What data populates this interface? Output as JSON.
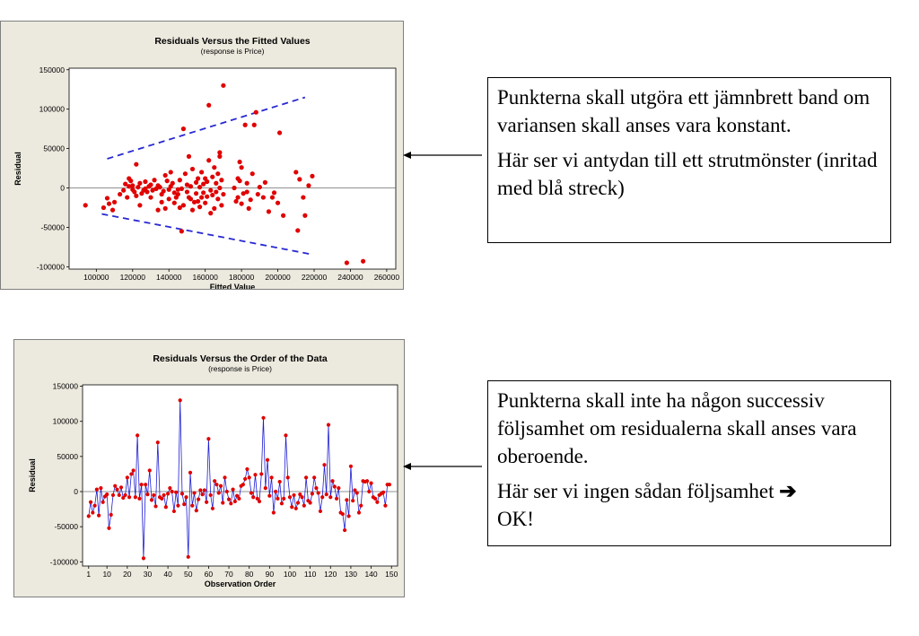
{
  "charts_meta": {
    "point_color": "#E00000",
    "line_color": "#1E1ED2",
    "dash_color": "#2828D2",
    "panel_bg": "#ECE9DE"
  },
  "chart_data": [
    {
      "type": "scatter",
      "title": "Residuals Versus the Fitted Values",
      "subtitle": "(response is Price)",
      "xlabel": "Fitted Value",
      "ylabel": "Residual",
      "xlim": [
        85000,
        265000
      ],
      "ylim": [
        -103000,
        152000
      ],
      "xticks": [
        100000,
        120000,
        140000,
        160000,
        180000,
        200000,
        220000,
        240000,
        260000
      ],
      "yticks": [
        -100000,
        -50000,
        0,
        50000,
        100000,
        150000
      ],
      "reference_line_y": 0,
      "trend_lines": [
        {
          "style": "dashed",
          "x": [
            106000,
            215000
          ],
          "y": [
            37000,
            115000
          ]
        },
        {
          "style": "dashed",
          "x": [
            103000,
            218000
          ],
          "y": [
            -33000,
            -84000
          ]
        }
      ],
      "points": [
        [
          94000,
          -22000
        ],
        [
          104000,
          -25000
        ],
        [
          106000,
          -13000
        ],
        [
          107000,
          -20000
        ],
        [
          109000,
          -28000
        ],
        [
          110000,
          -18000
        ],
        [
          113000,
          -8000
        ],
        [
          115000,
          -3000
        ],
        [
          116000,
          5000
        ],
        [
          117000,
          -12000
        ],
        [
          118000,
          2000
        ],
        [
          118000,
          12000
        ],
        [
          119000,
          9000
        ],
        [
          120000,
          -2000
        ],
        [
          120000,
          3000
        ],
        [
          121000,
          -5000
        ],
        [
          122000,
          -10000
        ],
        [
          122000,
          30000
        ],
        [
          123000,
          1000
        ],
        [
          124000,
          6000
        ],
        [
          124000,
          -22000
        ],
        [
          125000,
          -7000
        ],
        [
          126000,
          -3000
        ],
        [
          127000,
          8000
        ],
        [
          127000,
          -1000
        ],
        [
          128000,
          -5000
        ],
        [
          129000,
          2000
        ],
        [
          130000,
          -12000
        ],
        [
          130000,
          4000
        ],
        [
          131000,
          -3000
        ],
        [
          132000,
          10000
        ],
        [
          133000,
          -1000
        ],
        [
          134000,
          -28000
        ],
        [
          134000,
          3000
        ],
        [
          135000,
          1000
        ],
        [
          136000,
          -8000
        ],
        [
          136000,
          -18000
        ],
        [
          137000,
          -4000
        ],
        [
          138000,
          16000
        ],
        [
          138000,
          -26000
        ],
        [
          139000,
          9000
        ],
        [
          140000,
          -2000
        ],
        [
          140000,
          -14000
        ],
        [
          141000,
          2000
        ],
        [
          141000,
          20000
        ],
        [
          142000,
          6000
        ],
        [
          143000,
          -6000
        ],
        [
          143000,
          -19000
        ],
        [
          144000,
          -12000
        ],
        [
          145000,
          -2000
        ],
        [
          145000,
          -8000
        ],
        [
          146000,
          10000
        ],
        [
          146000,
          -25000
        ],
        [
          147000,
          -1000
        ],
        [
          147000,
          -55000
        ],
        [
          148000,
          75000
        ],
        [
          148000,
          -22000
        ],
        [
          149000,
          18000
        ],
        [
          150000,
          4000
        ],
        [
          150000,
          -5000
        ],
        [
          151000,
          40000
        ],
        [
          151000,
          -12000
        ],
        [
          152000,
          -14000
        ],
        [
          152000,
          2000
        ],
        [
          153000,
          24000
        ],
        [
          153000,
          -28000
        ],
        [
          154000,
          -18000
        ],
        [
          155000,
          -7000
        ],
        [
          155000,
          7000
        ],
        [
          156000,
          12000
        ],
        [
          156000,
          -17000
        ],
        [
          157000,
          1000
        ],
        [
          157000,
          -24000
        ],
        [
          158000,
          20000
        ],
        [
          158000,
          -12000
        ],
        [
          159000,
          5000
        ],
        [
          159000,
          -6000
        ],
        [
          160000,
          -19000
        ],
        [
          160000,
          12000
        ],
        [
          161000,
          8000
        ],
        [
          161000,
          -11000
        ],
        [
          162000,
          105000
        ],
        [
          162000,
          35000
        ],
        [
          163000,
          -3000
        ],
        [
          163000,
          -32000
        ],
        [
          164000,
          14000
        ],
        [
          164000,
          -9000
        ],
        [
          165000,
          -26000
        ],
        [
          165000,
          26000
        ],
        [
          166000,
          -5000
        ],
        [
          166000,
          6000
        ],
        [
          167000,
          18000
        ],
        [
          167000,
          -14000
        ],
        [
          168000,
          40000
        ],
        [
          168000,
          45000
        ],
        [
          168000,
          0
        ],
        [
          169000,
          10000
        ],
        [
          169000,
          -22000
        ],
        [
          170000,
          130000
        ],
        [
          170000,
          -8000
        ],
        [
          176000,
          0
        ],
        [
          177000,
          -17000
        ],
        [
          178000,
          12000
        ],
        [
          178000,
          -12000
        ],
        [
          179000,
          33000
        ],
        [
          179000,
          9000
        ],
        [
          180000,
          26000
        ],
        [
          180000,
          -20000
        ],
        [
          181000,
          -7000
        ],
        [
          182000,
          80000
        ],
        [
          183000,
          6000
        ],
        [
          183000,
          -5000
        ],
        [
          184000,
          -26000
        ],
        [
          185000,
          -15000
        ],
        [
          186000,
          18000
        ],
        [
          187000,
          80000
        ],
        [
          188000,
          96000
        ],
        [
          189000,
          -8000
        ],
        [
          190000,
          1000
        ],
        [
          192000,
          -12000
        ],
        [
          193000,
          7000
        ],
        [
          195000,
          -30000
        ],
        [
          197000,
          -12000
        ],
        [
          198000,
          -6000
        ],
        [
          200000,
          -19000
        ],
        [
          201000,
          70000
        ],
        [
          203000,
          -35000
        ],
        [
          210000,
          20000
        ],
        [
          211000,
          -54000
        ],
        [
          212000,
          11000
        ],
        [
          214000,
          -12000
        ],
        [
          215000,
          -35000
        ],
        [
          217000,
          3000
        ],
        [
          219000,
          15000
        ],
        [
          238000,
          -95000
        ],
        [
          247000,
          -93000
        ]
      ]
    },
    {
      "type": "line",
      "title": "Residuals Versus the Order of the Data",
      "subtitle": "(response is Price)",
      "xlabel": "Observation Order",
      "ylabel": "Residual",
      "xlim": [
        -2,
        153
      ],
      "ylim": [
        -106000,
        152000
      ],
      "xticks": [
        1,
        10,
        20,
        30,
        40,
        50,
        60,
        70,
        80,
        90,
        100,
        110,
        120,
        130,
        140,
        150
      ],
      "yticks": [
        -100000,
        -50000,
        0,
        50000,
        100000,
        150000
      ],
      "reference_line_y": 0,
      "y": [
        -35000,
        -15000,
        -30000,
        -20000,
        3000,
        -34000,
        5000,
        -15000,
        -7000,
        -4000,
        -52000,
        -33000,
        -5000,
        8000,
        3000,
        -5000,
        6000,
        -9000,
        -5000,
        20000,
        -8000,
        25000,
        30000,
        -8000,
        80000,
        -10000,
        10000,
        -95000,
        10000,
        -4000,
        30000,
        -12000,
        -5000,
        -21000,
        70000,
        -8000,
        -10000,
        -5000,
        -22000,
        -3000,
        5000,
        0,
        -28000,
        -1000,
        -20000,
        130000,
        -3000,
        -18000,
        -8000,
        -93000,
        27000,
        -20000,
        -2000,
        -27000,
        -11000,
        2000,
        -4000,
        2000,
        -15000,
        75000,
        -5000,
        -24000,
        15000,
        10000,
        -2000,
        8000,
        -16000,
        20000,
        0,
        -11000,
        -17000,
        3000,
        -14000,
        -6000,
        -10000,
        8000,
        10000,
        18000,
        32000,
        20000,
        -2000,
        -8000,
        24000,
        -10000,
        -14000,
        25000,
        105000,
        5000,
        45000,
        -6000,
        20000,
        -30000,
        0,
        -10000,
        14000,
        -17000,
        -10000,
        80000,
        20000,
        -8000,
        -22000,
        -5000,
        -24000,
        -16000,
        -4000,
        -8000,
        -20000,
        20000,
        -13000,
        -16000,
        -3000,
        20000,
        5000,
        -2000,
        -28000,
        -8000,
        38000,
        -4000,
        95000,
        -8000,
        15000,
        7000,
        -10000,
        5000,
        -30000,
        -32000,
        -55000,
        -12000,
        -35000,
        36000,
        -13000,
        2000,
        -2000,
        -30000,
        -20000,
        15000,
        14000,
        15000,
        0,
        12000,
        -8000,
        -10000,
        -15000,
        -5000,
        -3000,
        -1000,
        -20000,
        10000,
        10000
      ]
    }
  ],
  "notes": {
    "note1": {
      "p1": "Punkterna skall utgöra ett jämnbrett band om variansen skall anses vara konstant.",
      "p2": "Här ser vi antydan till ett strutmönster (inritad med blå streck)"
    },
    "note2": {
      "p1": "Punkterna skall inte ha någon successiv följsamhet om residualerna skall anses vara oberoende.",
      "p2_text": "Här ser vi ingen sådan följsamhet",
      "p2_arrow": "➔",
      "p2_end": "OK!"
    }
  }
}
